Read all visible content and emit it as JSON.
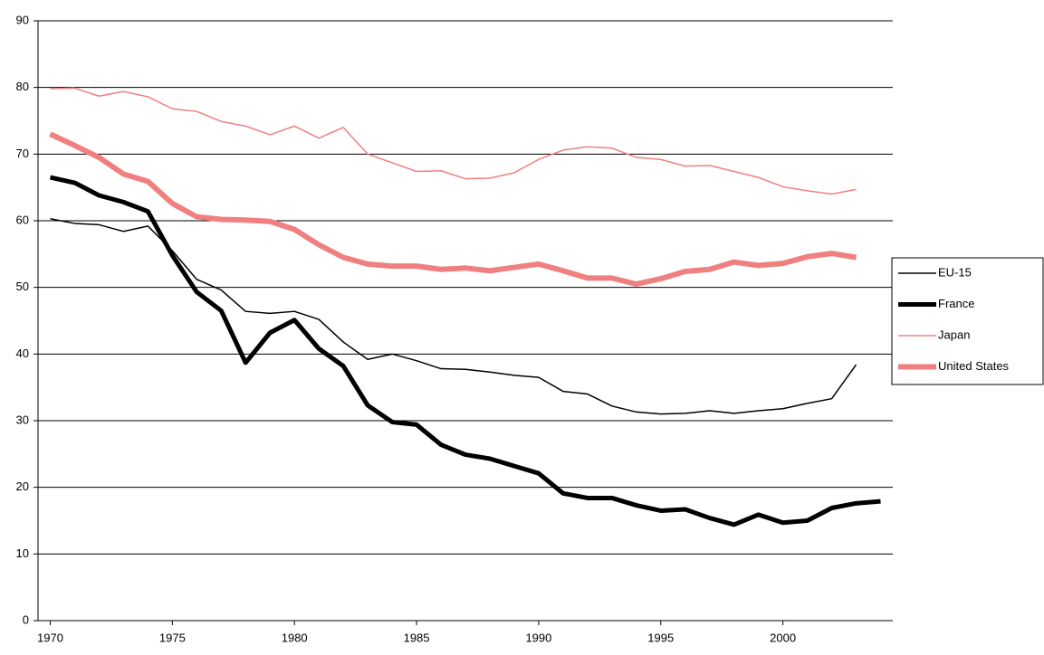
{
  "chart_data": {
    "type": "line",
    "x": [
      1970,
      1971,
      1972,
      1973,
      1974,
      1975,
      1976,
      1977,
      1978,
      1979,
      1980,
      1981,
      1982,
      1983,
      1984,
      1985,
      1986,
      1987,
      1988,
      1989,
      1990,
      1991,
      1992,
      1993,
      1994,
      1995,
      1996,
      1997,
      1998,
      1999,
      2000,
      2001,
      2002,
      2003,
      2004
    ],
    "xlim": [
      1969.5,
      2004.5
    ],
    "xticks": [
      1970,
      1975,
      1980,
      1985,
      1990,
      1995,
      2000
    ],
    "ylim": [
      0,
      90
    ],
    "yticks": [
      0,
      10,
      20,
      30,
      40,
      50,
      60,
      70,
      80,
      90
    ],
    "grid": true,
    "legend": "right",
    "series": [
      {
        "name": "EU-15",
        "color": "#000000",
        "width": 1.5,
        "values": [
          60.3,
          59.6,
          59.4,
          58.4,
          59.2,
          55.5,
          51.2,
          49.6,
          46.4,
          46.1,
          46.4,
          45.2,
          41.8,
          39.2,
          40.0,
          39.0,
          37.8,
          37.7,
          37.3,
          36.8,
          36.5,
          34.4,
          34.0,
          32.2,
          31.3,
          31.0,
          31.1,
          31.5,
          31.1,
          31.5,
          31.8,
          32.6,
          33.3,
          38.4,
          null
        ]
      },
      {
        "name": "France",
        "color": "#000000",
        "width": 5,
        "values": [
          66.5,
          65.7,
          63.8,
          62.8,
          61.4,
          54.8,
          49.3,
          46.5,
          38.7,
          43.2,
          45.1,
          40.8,
          38.2,
          32.3,
          29.8,
          29.4,
          26.4,
          24.9,
          24.3,
          23.2,
          22.1,
          19.1,
          18.4,
          18.4,
          17.3,
          16.5,
          16.7,
          15.4,
          14.4,
          15.9,
          14.7,
          15.0,
          16.9,
          17.6,
          17.9
        ]
      },
      {
        "name": "Japan",
        "color": "#f08080",
        "width": 1.5,
        "values": [
          79.8,
          79.9,
          78.7,
          79.4,
          78.6,
          76.8,
          76.4,
          74.9,
          74.2,
          72.9,
          74.2,
          72.4,
          74.0,
          70.0,
          68.7,
          67.4,
          67.5,
          66.3,
          66.4,
          67.2,
          69.2,
          70.6,
          71.1,
          70.9,
          69.5,
          69.2,
          68.2,
          68.3,
          67.4,
          66.5,
          65.1,
          64.5,
          64.0,
          64.7,
          null
        ]
      },
      {
        "name": "United States",
        "color": "#f08080",
        "width": 6,
        "values": [
          73.0,
          71.3,
          69.5,
          67.0,
          65.9,
          62.6,
          60.6,
          60.2,
          60.1,
          59.9,
          58.7,
          56.4,
          54.5,
          53.5,
          53.2,
          53.2,
          52.7,
          52.9,
          52.5,
          53.0,
          53.5,
          52.5,
          51.4,
          51.4,
          50.5,
          51.3,
          52.4,
          52.7,
          53.8,
          53.3,
          53.6,
          54.6,
          55.1,
          54.5,
          null
        ]
      }
    ]
  }
}
